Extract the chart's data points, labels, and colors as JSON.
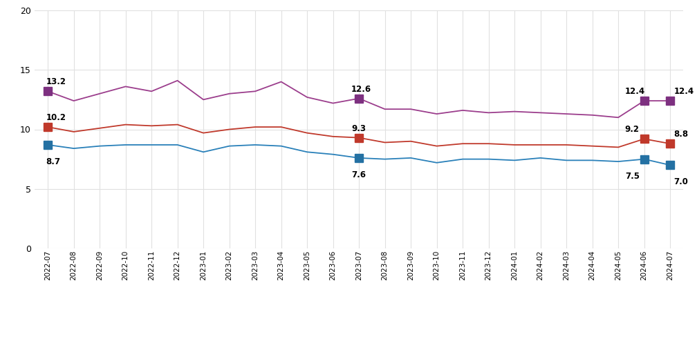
{
  "dates": [
    "2022-07",
    "2022-08",
    "2022-09",
    "2022-10",
    "2022-11",
    "2022-12",
    "2023-01",
    "2023-02",
    "2023-03",
    "2023-04",
    "2023-05",
    "2023-06",
    "2023-07",
    "2023-08",
    "2023-09",
    "2023-10",
    "2023-11",
    "2023-12",
    "2024-01",
    "2024-02",
    "2024-03",
    "2024-04",
    "2024-05",
    "2024-06",
    "2024-07"
  ],
  "total": [
    10.2,
    9.8,
    10.1,
    10.4,
    10.3,
    10.4,
    9.7,
    10.0,
    10.2,
    10.2,
    9.7,
    9.4,
    9.3,
    8.9,
    9.0,
    8.6,
    8.8,
    8.8,
    8.7,
    8.7,
    8.7,
    8.6,
    8.5,
    9.2,
    8.8
  ],
  "male": [
    8.7,
    8.4,
    8.6,
    8.7,
    8.7,
    8.7,
    8.1,
    8.6,
    8.7,
    8.6,
    8.1,
    7.9,
    7.6,
    7.5,
    7.6,
    7.2,
    7.5,
    7.5,
    7.4,
    7.6,
    7.4,
    7.4,
    7.3,
    7.5,
    7.0
  ],
  "female": [
    13.2,
    12.4,
    13.0,
    13.6,
    13.2,
    14.1,
    12.5,
    13.0,
    13.2,
    14.0,
    12.7,
    12.2,
    12.6,
    11.7,
    11.7,
    11.3,
    11.6,
    11.4,
    11.5,
    11.4,
    11.3,
    11.2,
    11.0,
    12.4,
    12.4
  ],
  "highlight_indices": [
    0,
    12,
    23,
    24
  ],
  "total_color": "#c0392b",
  "male_color": "#2980b9",
  "female_color": "#9b3d8c",
  "marker_color_total": "#c0392b",
  "marker_color_male": "#2471a3",
  "marker_color_female": "#7d3080",
  "bg_color": "#ffffff",
  "grid_color": "#e0e0e0",
  "ylim": [
    0,
    20
  ],
  "yticks": [
    0,
    5,
    10,
    15,
    20
  ],
  "annotations": {
    "0": {
      "total": "10.2",
      "male": "8.7",
      "female": "13.2"
    },
    "12": {
      "total": "9.3",
      "male": "7.6",
      "female": "12.6"
    },
    "23": {
      "total": "9.2",
      "male": "7.5",
      "female": "12.4"
    },
    "24": {
      "total": "8.8",
      "male": "7.0",
      "female": "12.4"
    }
  }
}
